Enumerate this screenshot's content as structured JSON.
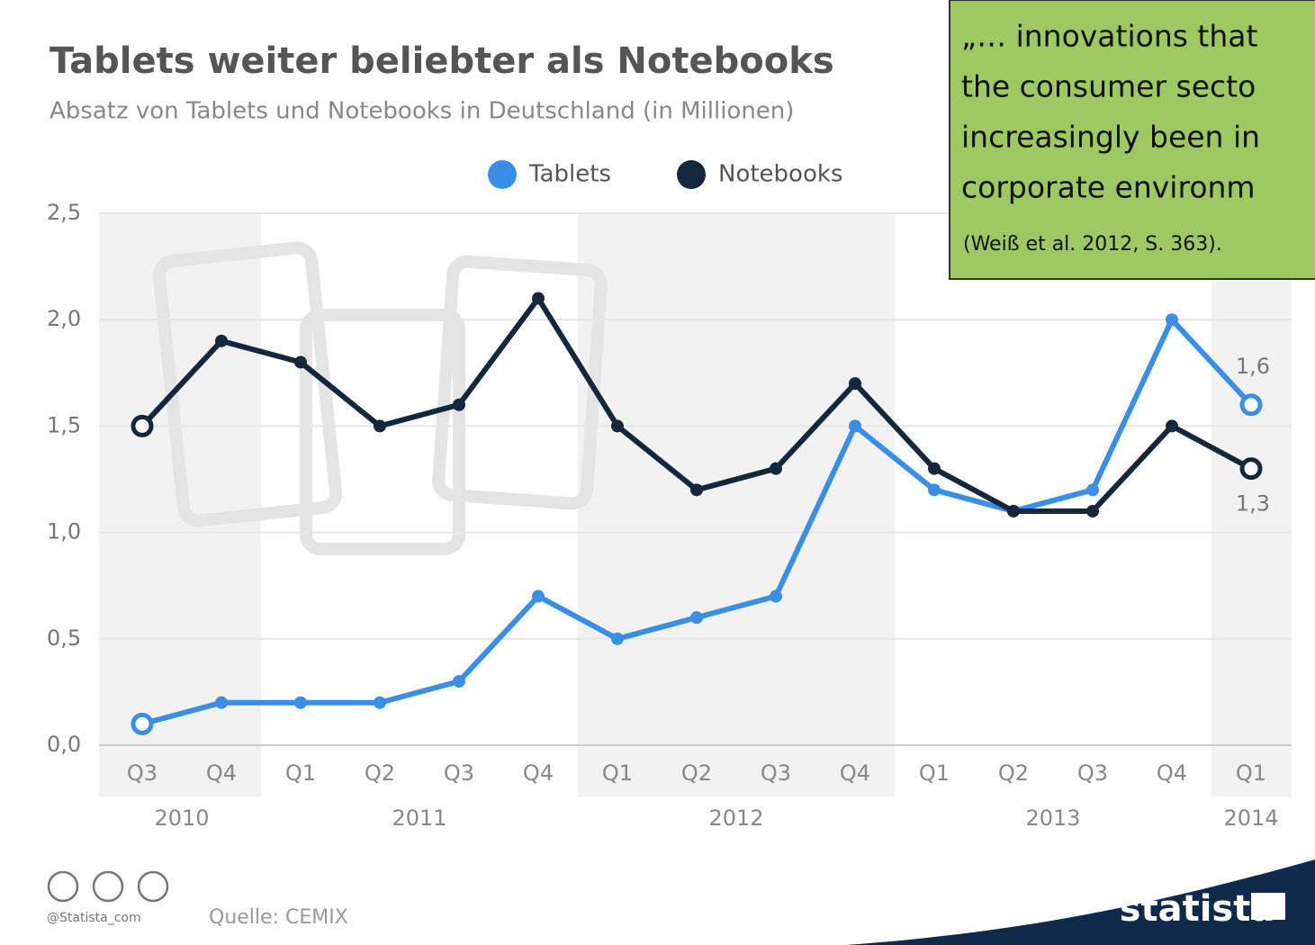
{
  "chart_data": {
    "type": "line",
    "title": "Tablets weiter beliebter als Notebooks",
    "subtitle": "Absatz von Tablets und Notebooks in Deutschland (in Millionen)",
    "categories": [
      "Q3",
      "Q4",
      "Q1",
      "Q2",
      "Q3",
      "Q4",
      "Q1",
      "Q2",
      "Q3",
      "Q4",
      "Q1",
      "Q2",
      "Q3",
      "Q4",
      "Q1"
    ],
    "years": [
      "2010",
      "2010",
      "2011",
      "2011",
      "2011",
      "2011",
      "2012",
      "2012",
      "2012",
      "2012",
      "2013",
      "2013",
      "2013",
      "2013",
      "2014"
    ],
    "series": [
      {
        "name": "Tablets",
        "color": "#3a8ee6",
        "values": [
          0.1,
          0.2,
          0.2,
          0.2,
          0.3,
          0.7,
          0.5,
          0.6,
          0.7,
          1.5,
          1.2,
          1.1,
          1.2,
          2.0,
          1.6
        ],
        "value_labels": [
          null,
          null,
          null,
          null,
          null,
          null,
          null,
          null,
          null,
          null,
          null,
          null,
          null,
          null,
          "1,6"
        ]
      },
      {
        "name": "Notebooks",
        "color": "#15273d",
        "values": [
          1.5,
          1.9,
          1.8,
          1.5,
          1.6,
          2.1,
          1.5,
          1.2,
          1.3,
          1.7,
          1.3,
          1.1,
          1.1,
          1.5,
          1.3
        ],
        "value_labels": [
          null,
          null,
          null,
          null,
          null,
          null,
          null,
          null,
          null,
          null,
          null,
          null,
          null,
          null,
          "1,3"
        ]
      }
    ],
    "ylim": [
      0,
      2.5
    ],
    "yticks": [
      {
        "value": 0,
        "label": "0,0"
      },
      {
        "value": 0.5,
        "label": "0,5"
      },
      {
        "value": 1,
        "label": "1,0"
      },
      {
        "value": 1.5,
        "label": "1,5"
      },
      {
        "value": 2,
        "label": "2,0"
      },
      {
        "value": 2.5,
        "label": "2,5"
      }
    ],
    "grid": true,
    "legend": "top",
    "source": "Quelle: CEMIX",
    "handle": "@Statista_com",
    "brand": "statista"
  },
  "annotation": {
    "lines": [
      "„… innovations that",
      "the consumer secto",
      "increasingly been in",
      "corporate environm"
    ],
    "citation": "(Weiß et al. 2012, S. 363)."
  }
}
